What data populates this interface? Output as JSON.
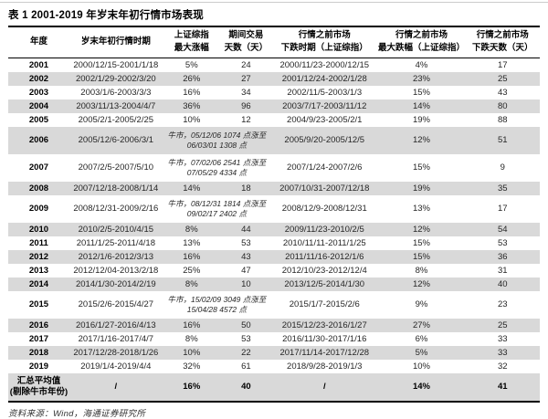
{
  "page": {
    "title": "表 1 2001-2019 年岁末年初行情市场表现",
    "source": "资料来源：Wind，海通证券研究所"
  },
  "table": {
    "columns": [
      {
        "line1": "年度",
        "line2": ""
      },
      {
        "line1": "岁末年初行情时期",
        "line2": ""
      },
      {
        "line1": "上证综指",
        "line2": "最大涨幅"
      },
      {
        "line1": "期间交易",
        "line2": "天数（天）"
      },
      {
        "line1": "行情之前市场",
        "line2": "下跌时期（上证综指）"
      },
      {
        "line1": "行情之前市场",
        "line2": "最大跌幅（上证综指）"
      },
      {
        "line1": "行情之前市场",
        "line2": "下跌天数（天）"
      }
    ],
    "rows": [
      {
        "year": "2001",
        "period": "2000/12/15-2001/1/18",
        "max_gain": "5%",
        "trading_days": "24",
        "decline_period": "2000/11/23-2000/12/15",
        "max_decline": "4%",
        "decline_days": "17"
      },
      {
        "year": "2002",
        "period": "2002/1/29-2002/3/20",
        "max_gain": "26%",
        "trading_days": "27",
        "decline_period": "2001/12/24-2002/1/28",
        "max_decline": "23%",
        "decline_days": "25"
      },
      {
        "year": "2003",
        "period": "2003/1/6-2003/3/3",
        "max_gain": "16%",
        "trading_days": "34",
        "decline_period": "2002/11/5-2003/1/3",
        "max_decline": "15%",
        "decline_days": "43"
      },
      {
        "year": "2004",
        "period": "2003/11/13-2004/4/7",
        "max_gain": "36%",
        "trading_days": "96",
        "decline_period": "2003/7/17-2003/11/12",
        "max_decline": "14%",
        "decline_days": "80"
      },
      {
        "year": "2005",
        "period": "2005/2/1-2005/2/25",
        "max_gain": "10%",
        "trading_days": "12",
        "decline_period": "2004/9/23-2005/2/1",
        "max_decline": "19%",
        "decline_days": "88"
      },
      {
        "year": "2006",
        "period": "2005/12/6-2006/3/1",
        "bull_note": "牛市，05/12/06 1074 点涨至 06/03/01 1308 点",
        "decline_period": "2005/9/20-2005/12/5",
        "max_decline": "12%",
        "decline_days": "51"
      },
      {
        "year": "2007",
        "period": "2007/2/5-2007/5/10",
        "bull_note": "牛市，07/02/06 2541 点涨至 07/05/29 4334 点",
        "decline_period": "2007/1/24-2007/2/6",
        "max_decline": "15%",
        "decline_days": "9"
      },
      {
        "year": "2008",
        "period": "2007/12/18-2008/1/14",
        "max_gain": "14%",
        "trading_days": "18",
        "decline_period": "2007/10/31-2007/12/18",
        "max_decline": "19%",
        "decline_days": "35"
      },
      {
        "year": "2009",
        "period": "2008/12/31-2009/2/16",
        "bull_note": "牛市，08/12/31 1814 点涨至 09/02/17 2402 点",
        "decline_period": "2008/12/9-2008/12/31",
        "max_decline": "13%",
        "decline_days": "17"
      },
      {
        "year": "2010",
        "period": "2010/2/5-2010/4/15",
        "max_gain": "8%",
        "trading_days": "44",
        "decline_period": "2009/11/23-2010/2/5",
        "max_decline": "12%",
        "decline_days": "54"
      },
      {
        "year": "2011",
        "period": "2011/1/25-2011/4/18",
        "max_gain": "13%",
        "trading_days": "53",
        "decline_period": "2010/11/11-2011/1/25",
        "max_decline": "15%",
        "decline_days": "53"
      },
      {
        "year": "2012",
        "period": "2012/1/6-2012/3/13",
        "max_gain": "16%",
        "trading_days": "43",
        "decline_period": "2011/11/16-2012/1/6",
        "max_decline": "15%",
        "decline_days": "36"
      },
      {
        "year": "2013",
        "period": "2012/12/04-2013/2/18",
        "max_gain": "25%",
        "trading_days": "47",
        "decline_period": "2012/10/23-2012/12/4",
        "max_decline": "8%",
        "decline_days": "31"
      },
      {
        "year": "2014",
        "period": "2014/1/30-2014/2/19",
        "max_gain": "8%",
        "trading_days": "10",
        "decline_period": "2013/12/5-2014/1/30",
        "max_decline": "12%",
        "decline_days": "40"
      },
      {
        "year": "2015",
        "period": "2015/2/6-2015/4/27",
        "bull_note": "牛市，15/02/09 3049 点涨至 15/04/28 4572 点",
        "decline_period": "2015/1/7-2015/2/6",
        "max_decline": "9%",
        "decline_days": "23"
      },
      {
        "year": "2016",
        "period": "2016/1/27-2016/4/13",
        "max_gain": "16%",
        "trading_days": "50",
        "decline_period": "2015/12/23-2016/1/27",
        "max_decline": "27%",
        "decline_days": "25"
      },
      {
        "year": "2017",
        "period": "2017/1/16-2017/4/7",
        "max_gain": "8%",
        "trading_days": "53",
        "decline_period": "2016/11/30-2017/1/16",
        "max_decline": "6%",
        "decline_days": "33"
      },
      {
        "year": "2018",
        "period": "2017/12/28-2018/1/26",
        "max_gain": "10%",
        "trading_days": "22",
        "decline_period": "2017/11/14-2017/12/28",
        "max_decline": "5%",
        "decline_days": "33"
      },
      {
        "year": "2019",
        "period": "2019/1/4-2019/4/4",
        "max_gain": "32%",
        "trading_days": "61",
        "decline_period": "2018/9/28-2019/1/3",
        "max_decline": "10%",
        "decline_days": "32"
      }
    ],
    "summary": {
      "label_line1": "汇总平均值",
      "label_line2": "(剔除牛市年份)",
      "period": "/",
      "max_gain": "16%",
      "trading_days": "40",
      "decline_period": "/",
      "max_decline": "14%",
      "decline_days": "41"
    }
  },
  "colors": {
    "row_alt": "#d9d9d9",
    "rule": "#000000"
  }
}
